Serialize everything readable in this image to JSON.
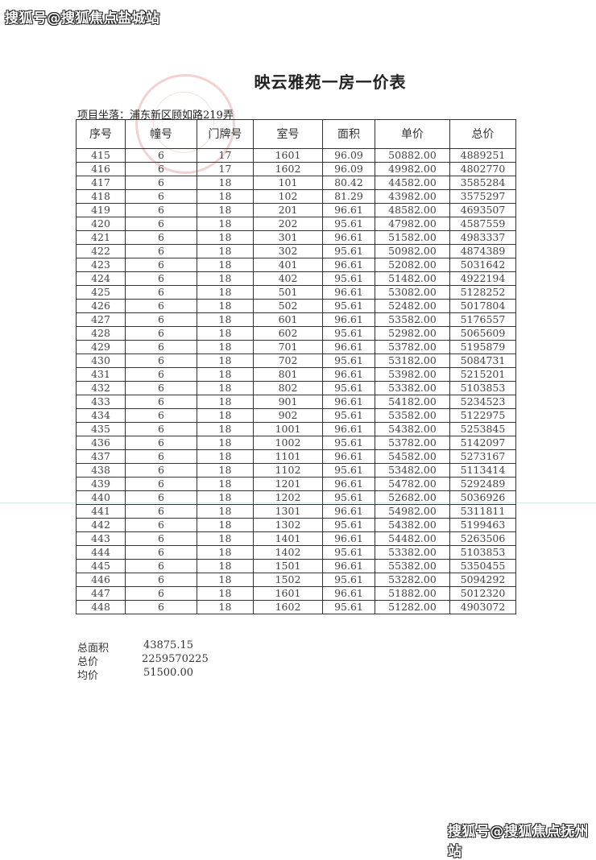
{
  "watermark_top": "搜狐号@搜狐焦点盐城站",
  "watermark_bottom": "搜狐号@搜狐焦点抚州站",
  "title": "映云雅苑一房一价表",
  "location": "项目坐落：浦东新区顾如路219弄",
  "table": {
    "headers": [
      "序号",
      "幢号",
      "门牌号",
      "室号",
      "面积",
      "单价",
      "总价"
    ],
    "rows": [
      [
        "415",
        "6",
        "17",
        "1601",
        "96.09",
        "50882.00",
        "4889251"
      ],
      [
        "416",
        "6",
        "17",
        "1602",
        "96.09",
        "49982.00",
        "4802770"
      ],
      [
        "417",
        "6",
        "18",
        "101",
        "80.42",
        "44582.00",
        "3585284"
      ],
      [
        "418",
        "6",
        "18",
        "102",
        "81.29",
        "43982.00",
        "3575297"
      ],
      [
        "419",
        "6",
        "18",
        "201",
        "96.61",
        "48582.00",
        "4693507"
      ],
      [
        "420",
        "6",
        "18",
        "202",
        "95.61",
        "47982.00",
        "4587559"
      ],
      [
        "421",
        "6",
        "18",
        "301",
        "96.61",
        "51582.00",
        "4983337"
      ],
      [
        "422",
        "6",
        "18",
        "302",
        "95.61",
        "50982.00",
        "4874389"
      ],
      [
        "423",
        "6",
        "18",
        "401",
        "96.61",
        "52082.00",
        "5031642"
      ],
      [
        "424",
        "6",
        "18",
        "402",
        "95.61",
        "51482.00",
        "4922194"
      ],
      [
        "425",
        "6",
        "18",
        "501",
        "96.61",
        "53082.00",
        "5128252"
      ],
      [
        "426",
        "6",
        "18",
        "502",
        "95.61",
        "52482.00",
        "5017804"
      ],
      [
        "427",
        "6",
        "18",
        "601",
        "96.61",
        "53582.00",
        "5176557"
      ],
      [
        "428",
        "6",
        "18",
        "602",
        "95.61",
        "52982.00",
        "5065609"
      ],
      [
        "429",
        "6",
        "18",
        "701",
        "96.61",
        "53782.00",
        "5195879"
      ],
      [
        "430",
        "6",
        "18",
        "702",
        "95.61",
        "53182.00",
        "5084731"
      ],
      [
        "431",
        "6",
        "18",
        "801",
        "96.61",
        "53982.00",
        "5215201"
      ],
      [
        "432",
        "6",
        "18",
        "802",
        "95.61",
        "53382.00",
        "5103853"
      ],
      [
        "433",
        "6",
        "18",
        "901",
        "96.61",
        "54182.00",
        "5234523"
      ],
      [
        "434",
        "6",
        "18",
        "902",
        "95.61",
        "53582.00",
        "5122975"
      ],
      [
        "435",
        "6",
        "18",
        "1001",
        "96.61",
        "54382.00",
        "5253845"
      ],
      [
        "436",
        "6",
        "18",
        "1002",
        "95.61",
        "53782.00",
        "5142097"
      ],
      [
        "437",
        "6",
        "18",
        "1101",
        "96.61",
        "54582.00",
        "5273167"
      ],
      [
        "438",
        "6",
        "18",
        "1102",
        "95.61",
        "53482.00",
        "5113414"
      ],
      [
        "439",
        "6",
        "18",
        "1201",
        "96.61",
        "54782.00",
        "5292489"
      ],
      [
        "440",
        "6",
        "18",
        "1202",
        "95.61",
        "52682.00",
        "5036926"
      ],
      [
        "441",
        "6",
        "18",
        "1301",
        "96.61",
        "54982.00",
        "5311811"
      ],
      [
        "442",
        "6",
        "18",
        "1302",
        "95.61",
        "54382.00",
        "5199463"
      ],
      [
        "443",
        "6",
        "18",
        "1401",
        "96.61",
        "54482.00",
        "5263506"
      ],
      [
        "444",
        "6",
        "18",
        "1402",
        "95.61",
        "53382.00",
        "5103853"
      ],
      [
        "445",
        "6",
        "18",
        "1501",
        "96.61",
        "55382.00",
        "5350455"
      ],
      [
        "446",
        "6",
        "18",
        "1502",
        "95.61",
        "53282.00",
        "5094292"
      ],
      [
        "447",
        "6",
        "18",
        "1601",
        "96.61",
        "51882.00",
        "5012320"
      ],
      [
        "448",
        "6",
        "18",
        "1602",
        "95.61",
        "51282.00",
        "4903072"
      ]
    ]
  },
  "summary": [
    {
      "label": "总面积",
      "value": "43875.15"
    },
    {
      "label": "总价",
      "value": "2259570225"
    },
    {
      "label": "均价",
      "value": "51500.00"
    }
  ],
  "colors": {
    "stamp": "#d25a5a"
  }
}
